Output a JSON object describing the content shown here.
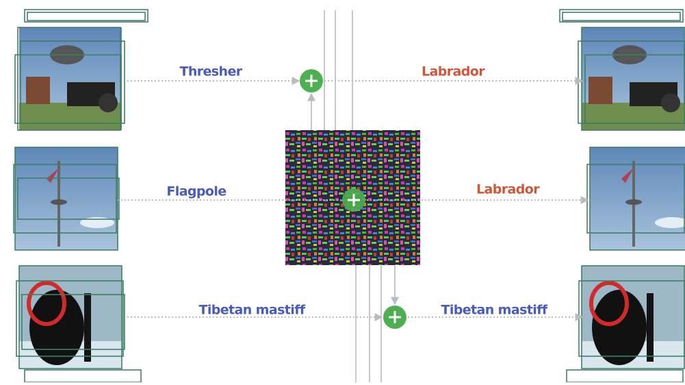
{
  "rows": [
    {
      "input_label": "Thresher",
      "output_label": "Labrador"
    },
    {
      "input_label": "Flagpole",
      "output_label": "Labrador"
    },
    {
      "input_label": "Tibetan mastiff",
      "output_label": "Tibetan mastiff"
    }
  ]
}
